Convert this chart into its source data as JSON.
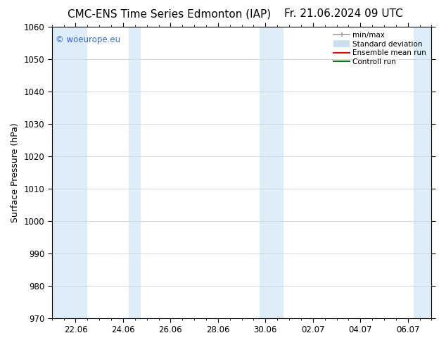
{
  "title_left": "CMC-ENS Time Series Edmonton (IAP)",
  "title_right": "Fr. 21.06.2024 09 UTC",
  "ylabel": "Surface Pressure (hPa)",
  "ylim": [
    970,
    1060
  ],
  "yticks": [
    970,
    980,
    990,
    1000,
    1010,
    1020,
    1030,
    1040,
    1050,
    1060
  ],
  "xtick_labels": [
    "22.06",
    "24.06",
    "26.06",
    "28.06",
    "30.06",
    "02.07",
    "04.07",
    "06.07"
  ],
  "xtick_positions": [
    1,
    3,
    5,
    7,
    9,
    11,
    13,
    15
  ],
  "shaded_bands": [
    {
      "x_start": 0.0,
      "x_end": 1.5
    },
    {
      "x_start": 3.25,
      "x_end": 3.75
    },
    {
      "x_start": 8.75,
      "x_end": 9.25
    },
    {
      "x_start": 9.25,
      "x_end": 9.75
    },
    {
      "x_start": 15.25,
      "x_end": 16.0
    }
  ],
  "shaded_color": "#ddeef8",
  "watermark_text": "© woeurope.eu",
  "watermark_color": "#3366cc",
  "background_color": "#ffffff",
  "legend_minmax_color": "#a0a0a0",
  "legend_std_color": "#c8dff0",
  "legend_ens_color": "#ff0000",
  "legend_ctrl_color": "#008000",
  "title_fontsize": 11,
  "axis_label_fontsize": 9,
  "tick_fontsize": 8.5,
  "x_min": 0.0,
  "x_max": 16.0,
  "grid_color": "#cccccc"
}
